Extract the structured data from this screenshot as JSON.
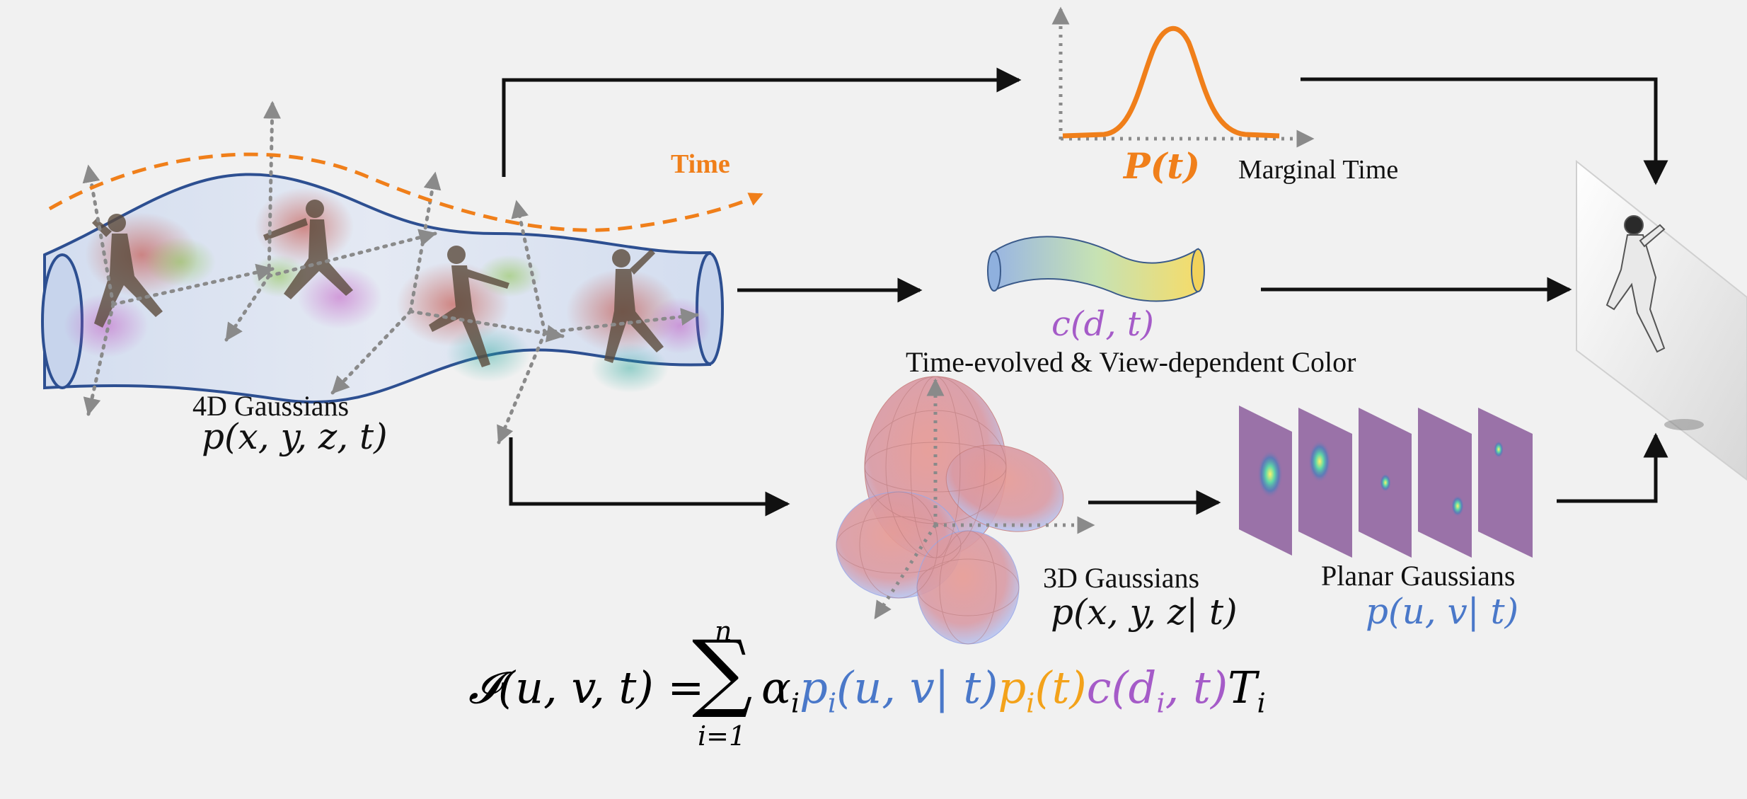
{
  "labels": {
    "time": "Time",
    "gaussians_4d": "4D Gaussians",
    "p_xyzt": "p(x, y, z, t)",
    "p_t": "P(t)",
    "marginal_time": "Marginal Time",
    "c_dt": "c(d, t)",
    "color_caption": "Time-evolved & View-dependent Color",
    "gaussians_3d": "3D Gaussians",
    "p_xyz_t": "p(x, y, z| t)",
    "planar_gaussians": "Planar Gaussians",
    "p_uv_t": "p(u, v| t)"
  },
  "equation": {
    "lhs": "𝓘(u, v, t) =",
    "sum_upper": "n",
    "sum_symbol": "∑",
    "sum_lower": "i=1",
    "alpha": "α",
    "p_uv": "p",
    "p_uv_args": "(u, v| t)",
    "p_t": "p",
    "p_t_args": "(t)",
    "c": "c(d",
    "c_rest": ", t)",
    "T": "T",
    "sub_i": "i"
  },
  "colors": {
    "orange": "#f07f1a",
    "blue": "#4a78c9",
    "purple": "#a55bc8",
    "tube_edge": "#2d4f91",
    "arrow": "#111111",
    "axis_gray": "#8a8a8a"
  },
  "icons": {
    "tube": "gaussian-tube-icon",
    "curve": "marginal-time-curve",
    "color_tube": "color-gradient-tube",
    "ellipsoids": "3d-gaussian-ellipsoids",
    "planes": "planar-gaussian-slices",
    "render": "rendered-image-plane",
    "figure": "runner-figure-icon"
  }
}
